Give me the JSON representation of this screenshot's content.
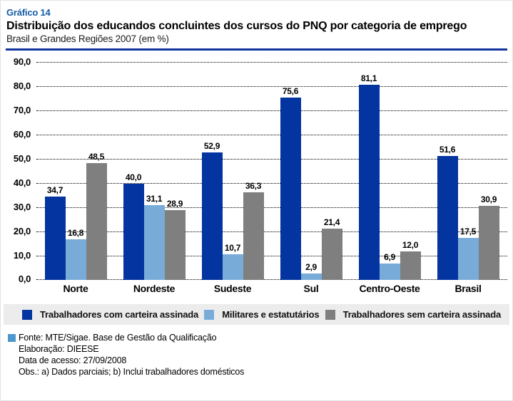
{
  "header": {
    "chart_number": "Gráfico 14",
    "title": "Distribuição dos educandos concluintes dos cursos do PNQ por categoria de emprego",
    "subtitle": "Brasil e Grandes Regiões 2007 (em %)"
  },
  "chart_data": {
    "type": "bar",
    "title": "Distribuição dos educandos concluintes dos cursos do PNQ por categoria de emprego",
    "subtitle": "Brasil e Grandes Regiões 2007 (em %)",
    "categories": [
      "Norte",
      "Nordeste",
      "Sudeste",
      "Sul",
      "Centro-Oeste",
      "Brasil"
    ],
    "series": [
      {
        "name": "Trabalhadores com carteira assinada",
        "color": "#0334a0",
        "values": [
          34.7,
          40.0,
          52.9,
          75.6,
          81.1,
          51.6
        ],
        "labels": [
          "34,7",
          "40,0",
          "52,9",
          "75,6",
          "81,1",
          "51,6"
        ]
      },
      {
        "name": "Militares e estatutários",
        "color": "#79abd9",
        "values": [
          16.8,
          31.1,
          10.7,
          2.9,
          6.9,
          17.5
        ],
        "labels": [
          "16,8",
          "31,1",
          "10,7",
          "2,9",
          "6,9",
          "17,5"
        ]
      },
      {
        "name": "Trabalhadores sem carteira assinada",
        "color": "#7f7f7f",
        "values": [
          48.5,
          28.9,
          36.3,
          21.4,
          12.0,
          30.9
        ],
        "labels": [
          "48,5",
          "28,9",
          "36,3",
          "21,4",
          "12,0",
          "30,9"
        ]
      }
    ],
    "y_axis": {
      "min": 0,
      "max": 90,
      "step": 10,
      "tick_labels": [
        "0,0",
        "10,0",
        "20,0",
        "30,0",
        "40,0",
        "50,0",
        "60,0",
        "70,0",
        "80,0",
        "90,0"
      ]
    },
    "xlabel": "",
    "ylabel": "",
    "grid": "horizontal-dotted",
    "legend_position": "bottom"
  },
  "footer": {
    "lines": [
      "Fonte: MTE/Sigae. Base de Gestão da Qualificação",
      "Elaboração: DIEESE",
      "Data de acesso: 27/09/2008",
      "Obs.: a) Dados parciais; b) Inclui trabalhadores domésticos"
    ]
  },
  "colors": {
    "title_accent": "#155ba5",
    "rule": "#10339e",
    "legend_background": "#ececec",
    "source_bullet": "#4e96ce"
  }
}
